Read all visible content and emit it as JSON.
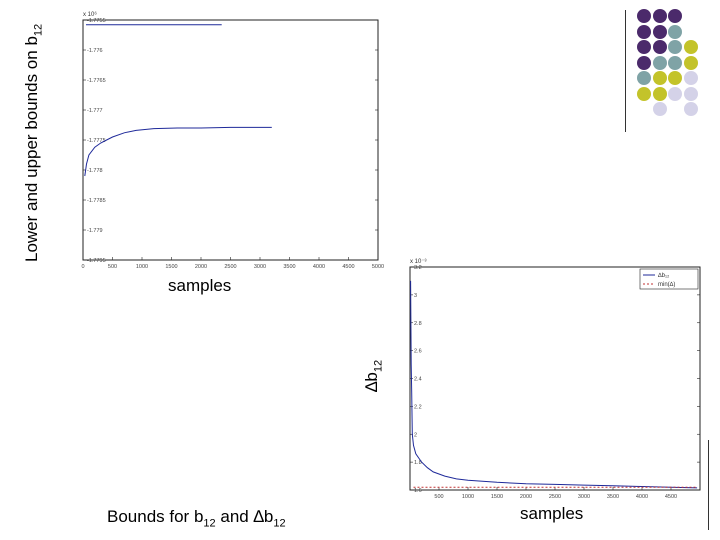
{
  "slide": {
    "left_ylabel_main": "Lower and upper bounds on b",
    "left_ylabel_sub": "12",
    "left_xlabel": "samples",
    "right_ylabel_main": "∆b",
    "right_ylabel_sub": "12",
    "right_xlabel": "samples",
    "caption_part1": "Bounds for b",
    "caption_sub1": "12",
    "caption_part2": " and ∆b",
    "caption_sub2": "12"
  },
  "decoration": {
    "colors": {
      "purple": "#4b2a6b",
      "teal": "#7fa3a6",
      "olive": "#c3c32a",
      "lavender": "#d4d2e8"
    },
    "grid": [
      [
        "purple",
        "purple",
        "purple",
        null
      ],
      [
        "purple",
        "purple",
        "teal",
        null
      ],
      [
        "purple",
        "purple",
        "teal",
        "olive"
      ],
      [
        "purple",
        "teal",
        "teal",
        "olive"
      ],
      [
        "teal",
        "olive",
        "olive",
        "lavender"
      ],
      [
        "olive",
        "olive",
        "lavender",
        "lavender"
      ],
      [
        null,
        "lavender",
        null,
        "lavender"
      ]
    ]
  },
  "chart_data": [
    {
      "type": "line",
      "title": "",
      "exponent_label": "x 10⁶",
      "xlim": [
        0,
        5000
      ],
      "ylim": [
        -1.7795,
        -1.7755
      ],
      "xticks": [
        0,
        500,
        1000,
        1500,
        2000,
        2500,
        3000,
        3500,
        4000,
        4500,
        5000
      ],
      "yticks": [
        -1.7755,
        -1.776,
        -1.7765,
        -1.777,
        -1.7775,
        -1.778,
        -1.7785,
        -1.779,
        -1.7795
      ],
      "ytick_labels": [
        "-1.7755",
        "-1.776",
        "-1.7765",
        "-1.777",
        "-1.7775",
        "-1.778",
        "-1.7785",
        "-1.779",
        "-1.7795"
      ],
      "series": [
        {
          "color": "#1f2a9a",
          "points": [
            [
              50,
              -1.77558
            ],
            [
              2350,
              -1.77558
            ]
          ]
        },
        {
          "color": "#1f2a9a",
          "points": [
            [
              30,
              -1.7781
            ],
            [
              60,
              -1.7779
            ],
            [
              100,
              -1.77775
            ],
            [
              200,
              -1.77762
            ],
            [
              300,
              -1.77755
            ],
            [
              400,
              -1.7775
            ],
            [
              500,
              -1.77745
            ],
            [
              700,
              -1.77738
            ],
            [
              900,
              -1.77734
            ],
            [
              1200,
              -1.77731
            ],
            [
              1600,
              -1.7773
            ],
            [
              2000,
              -1.7773
            ],
            [
              2500,
              -1.77729
            ],
            [
              3200,
              -1.77729
            ]
          ]
        }
      ]
    },
    {
      "type": "line",
      "title": "",
      "exponent_label": "x 10⁻³",
      "xlim": [
        0,
        5000
      ],
      "ylim": [
        1.6,
        3.2
      ],
      "xticks": [
        500,
        1000,
        1500,
        2000,
        2500,
        3000,
        3500,
        4000,
        4500
      ],
      "yticks": [
        1.6,
        1.8,
        2,
        2.2,
        2.4,
        2.6,
        2.8,
        3,
        3.2
      ],
      "ytick_labels": [
        "1.6",
        "1.8",
        "2",
        "2.2",
        "2.4",
        "2.6",
        "2.8",
        "3",
        "3.2"
      ],
      "legend_labels": [
        "∆b₁₂",
        "min(∆)"
      ],
      "legend_position": "top-right",
      "series": [
        {
          "name": "∆b₁₂",
          "color": "#1f2a9a",
          "points": [
            [
              10,
              3.1
            ],
            [
              20,
              2.5
            ],
            [
              30,
              2.3
            ],
            [
              40,
              2.0
            ],
            [
              60,
              1.92
            ],
            [
              100,
              1.86
            ],
            [
              200,
              1.8
            ],
            [
              300,
              1.76
            ],
            [
              400,
              1.73
            ],
            [
              600,
              1.7
            ],
            [
              800,
              1.68
            ],
            [
              1000,
              1.67
            ],
            [
              1500,
              1.655
            ],
            [
              2000,
              1.645
            ],
            [
              2500,
              1.64
            ],
            [
              3000,
              1.635
            ],
            [
              3500,
              1.63
            ],
            [
              4000,
              1.625
            ],
            [
              4500,
              1.62
            ],
            [
              4950,
              1.615
            ]
          ]
        },
        {
          "name": "min(∆)",
          "color": "#c03030",
          "dashed": true,
          "points": [
            [
              60,
              1.62
            ],
            [
              4950,
              1.62
            ]
          ]
        }
      ]
    }
  ]
}
